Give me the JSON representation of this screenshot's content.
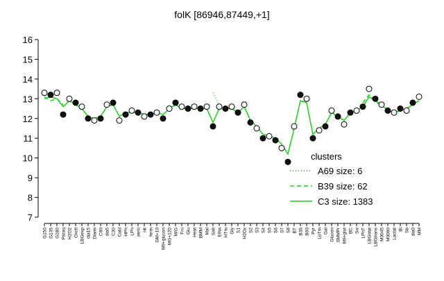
{
  "chart_data": {
    "type": "line",
    "title": "folK [86946,87449,+1]",
    "categories": [
      "G150",
      "G135",
      "G180",
      "Paraq",
      "H2O2",
      "Oxctl",
      "LBGexp",
      "dia15",
      "Diami",
      "C90",
      "dia5",
      "C30",
      "Cold",
      "HPh",
      "LPh",
      "aero",
      "nit",
      "ferm",
      "GM+10",
      "M9+glucon",
      "MG+120",
      "M/G",
      "Fru",
      "Glu",
      "Heat",
      "BMM",
      "Mal",
      "Salt",
      "Etha",
      "HTm",
      "Gly",
      "S1",
      "H2Ox",
      "S2",
      "S3",
      "S4",
      "S5",
      "S6",
      "S7",
      "S8",
      "BT",
      "B36",
      "B60",
      "Pyr",
      "LoTm",
      "Gal",
      "Glucon",
      "SMMPr",
      "M9+glut",
      "BC",
      "Sw",
      "LPhT",
      "LBGstat",
      "LBGtrans",
      "M0045",
      "M0090",
      "Lactat",
      "Bl",
      "Sb",
      "dia0",
      "MM"
    ],
    "points": [
      13.3,
      13.2,
      13.3,
      12.2,
      13.0,
      12.8,
      12.6,
      12.0,
      11.9,
      12.0,
      12.7,
      12.8,
      11.9,
      12.2,
      12.4,
      12.3,
      12.1,
      12.2,
      12.3,
      12.0,
      12.5,
      12.8,
      12.6,
      12.5,
      12.6,
      12.5,
      12.6,
      11.6,
      12.6,
      12.5,
      12.6,
      12.3,
      12.7,
      11.8,
      11.5,
      11.0,
      11.1,
      10.9,
      10.5,
      9.8,
      11.6,
      13.2,
      13.0,
      11.0,
      11.4,
      11.6,
      12.4,
      12.1,
      11.7,
      12.3,
      12.4,
      12.6,
      13.5,
      13.0,
      12.7,
      12.4,
      12.3,
      12.5,
      12.4,
      12.8,
      13.1
    ],
    "series": [
      {
        "name": "A69 size: 6",
        "color": "#22cc22",
        "dash": "dotted",
        "values": [
          null,
          null,
          null,
          null,
          null,
          null,
          null,
          null,
          null,
          null,
          null,
          null,
          null,
          null,
          null,
          null,
          null,
          null,
          null,
          null,
          null,
          null,
          null,
          null,
          null,
          null,
          null,
          13.3,
          12.7,
          null,
          null,
          null,
          null,
          null,
          null,
          null,
          null,
          null,
          null,
          null,
          null,
          null,
          null,
          null,
          null,
          null,
          null,
          null,
          null,
          null,
          null,
          null,
          null,
          null,
          null,
          null,
          null,
          null,
          null,
          null,
          null
        ]
      },
      {
        "name": "B39 size: 62",
        "color": "#22cc22",
        "dash": "dashed",
        "values": [
          13.1,
          12.9,
          13.0,
          12.7,
          null,
          null,
          null,
          null,
          null,
          null,
          null,
          null,
          null,
          null,
          null,
          null,
          null,
          null,
          null,
          null,
          null,
          null,
          null,
          null,
          null,
          null,
          null,
          null,
          null,
          null,
          null,
          null,
          null,
          null,
          null,
          null,
          null,
          null,
          null,
          null,
          null,
          null,
          null,
          null,
          null,
          null,
          null,
          null,
          null,
          null,
          null,
          12.8,
          13.2,
          12.9,
          12.6,
          null,
          null,
          null,
          null,
          null,
          null
        ]
      },
      {
        "name": "C3 size: 1383",
        "color": "#22cc22",
        "dash": "solid",
        "values": [
          13.0,
          13.1,
          13.0,
          12.6,
          12.9,
          12.7,
          12.5,
          12.1,
          12.0,
          12.1,
          12.6,
          12.7,
          12.1,
          12.3,
          12.3,
          12.3,
          12.2,
          12.2,
          12.3,
          12.2,
          12.5,
          12.7,
          12.5,
          12.5,
          12.5,
          12.5,
          12.5,
          11.8,
          12.5,
          12.5,
          12.5,
          12.3,
          12.6,
          11.9,
          11.6,
          11.2,
          11.1,
          11.0,
          10.7,
          10.2,
          11.5,
          12.9,
          12.8,
          11.2,
          11.5,
          11.7,
          12.3,
          12.1,
          11.9,
          12.3,
          12.4,
          12.6,
          13.1,
          12.9,
          12.7,
          12.4,
          12.3,
          12.4,
          12.5,
          12.7,
          12.9
        ]
      }
    ],
    "legend_title": "clusters",
    "ylim": [
      7,
      16
    ],
    "yticks": [
      7,
      8,
      9,
      10,
      11,
      12,
      13,
      14,
      15,
      16
    ]
  }
}
